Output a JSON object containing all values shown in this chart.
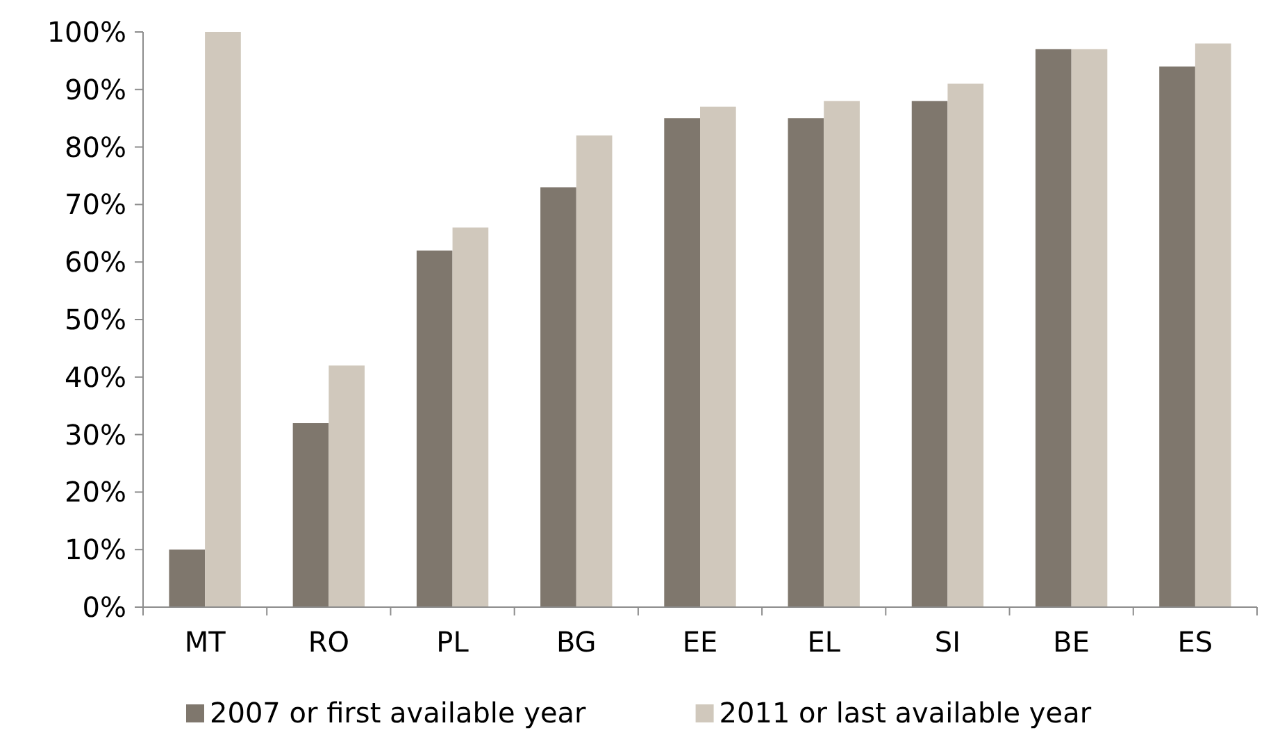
{
  "chart_data": {
    "type": "bar",
    "categories": [
      "MT",
      "RO",
      "PL",
      "BG",
      "EE",
      "EL",
      "SI",
      "BE",
      "ES"
    ],
    "series": [
      {
        "name": "2007 or first available year",
        "color": "#7f776d",
        "values": [
          10,
          32,
          62,
          73,
          85,
          85,
          88,
          97,
          94
        ]
      },
      {
        "name": "2011 or last available year",
        "color": "#d0c8bc",
        "values": [
          100,
          42,
          66,
          82,
          87,
          88,
          91,
          97,
          98
        ]
      }
    ],
    "ylim": [
      0,
      100
    ],
    "yticks": [
      {
        "value": 0,
        "label": "0%"
      },
      {
        "value": 10,
        "label": "10%"
      },
      {
        "value": 20,
        "label": "20%"
      },
      {
        "value": 30,
        "label": "30%"
      },
      {
        "value": 40,
        "label": "40%"
      },
      {
        "value": 50,
        "label": "50%"
      },
      {
        "value": 60,
        "label": "60%"
      },
      {
        "value": 70,
        "label": "70%"
      },
      {
        "value": 80,
        "label": "80%"
      },
      {
        "value": 90,
        "label": "90%"
      },
      {
        "value": 100,
        "label": "100%"
      }
    ],
    "grid": false,
    "legend": "bottom"
  }
}
